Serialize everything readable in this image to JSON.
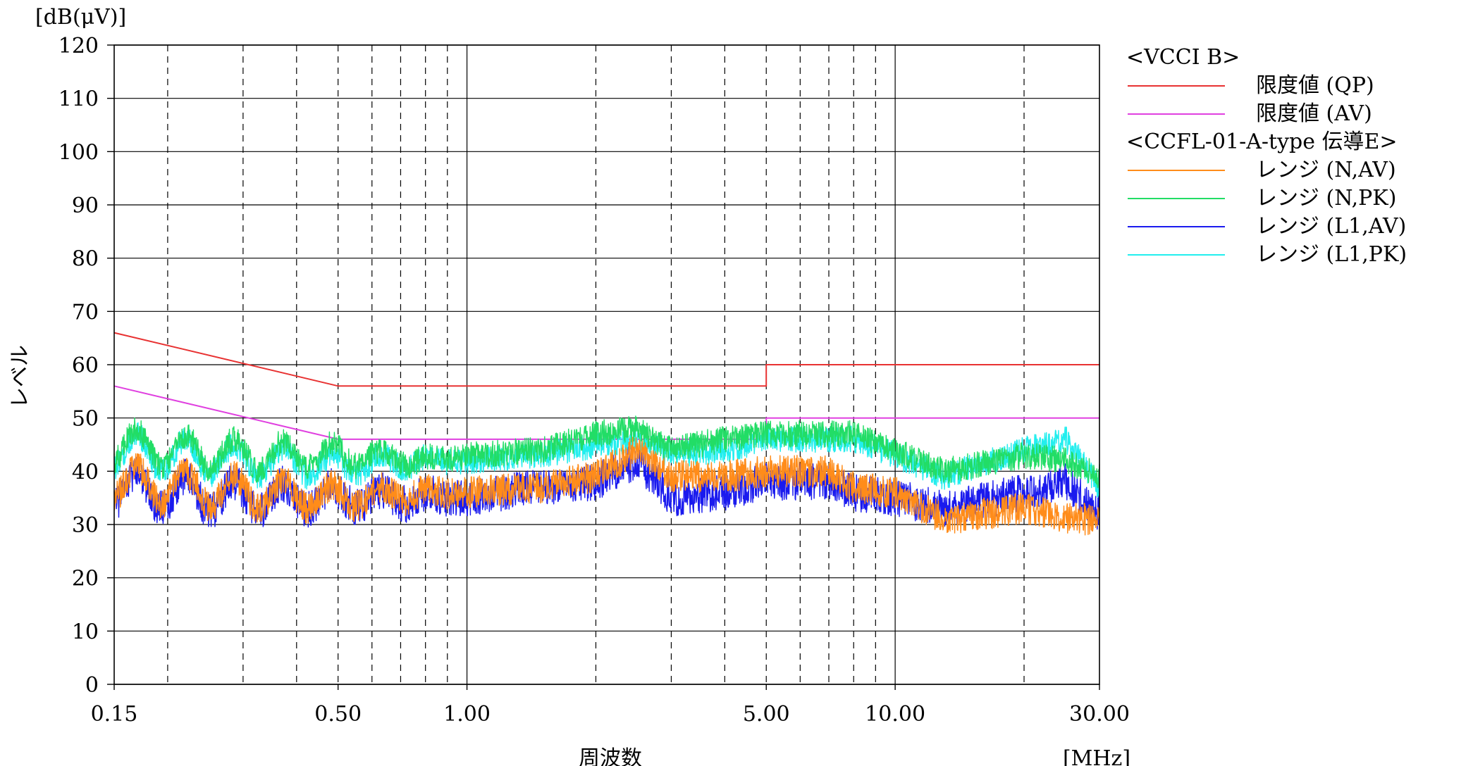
{
  "chart_data": {
    "type": "line",
    "title": "",
    "ylabel": "レベル",
    "yunit": "[dB(μV)]",
    "xlabel": "周波数",
    "xunit": "[MHz]",
    "xscale": "log",
    "xlim": [
      0.15,
      30
    ],
    "ylim": [
      0,
      120
    ],
    "yticks": [
      0,
      10,
      20,
      30,
      40,
      50,
      60,
      70,
      80,
      90,
      100,
      110,
      120
    ],
    "xtick_labels": [
      {
        "x": 0.15,
        "label": "0.15"
      },
      {
        "x": 0.5,
        "label": "0.50"
      },
      {
        "x": 1,
        "label": "1.00"
      },
      {
        "x": 5,
        "label": "5.00"
      },
      {
        "x": 10,
        "label": "10.00"
      },
      {
        "x": 30,
        "label": "30.00"
      }
    ],
    "minor_gridlines": [
      0.2,
      0.3,
      0.4,
      0.5,
      0.6,
      0.7,
      0.8,
      0.9,
      2,
      3,
      4,
      5,
      6,
      7,
      8,
      9,
      20
    ],
    "major_gridlines": [
      1,
      10
    ],
    "grid": true,
    "legend_position": "right",
    "legend": [
      {
        "type": "group",
        "label": "<VCCI B>"
      },
      {
        "type": "series",
        "label": "限度値 (QP)",
        "color": "#e83232"
      },
      {
        "type": "series",
        "label": "限度値 (AV)",
        "color": "#e040e0"
      },
      {
        "type": "group",
        "label": "<CCFL-01-A-type 伝導E>"
      },
      {
        "type": "series",
        "label": "レンジ (N,AV)",
        "color": "#ff8c1a"
      },
      {
        "type": "series",
        "label": "レンジ (N,PK)",
        "color": "#22dd66"
      },
      {
        "type": "series",
        "label": "レンジ (L1,AV)",
        "color": "#1a1aee"
      },
      {
        "type": "series",
        "label": "レンジ (L1,PK)",
        "color": "#22eeee"
      }
    ],
    "series": [
      {
        "name": "限度値 (QP)",
        "color": "#e83232",
        "x": [
          0.15,
          0.5,
          5,
          5,
          30
        ],
        "y": [
          66,
          56,
          56,
          60,
          60
        ]
      },
      {
        "name": "限度値 (AV)",
        "color": "#e040e0",
        "x": [
          0.15,
          0.5,
          5,
          5,
          30
        ],
        "y": [
          56,
          46,
          46,
          50,
          50
        ]
      },
      {
        "name": "レンジ (N,AV)",
        "color": "#ff8c1a",
        "x": [
          0.15,
          0.2,
          0.3,
          0.5,
          0.8,
          1.0,
          1.5,
          2.0,
          2.5,
          3.0,
          4.0,
          5.0,
          7.0,
          8.0,
          10.0,
          13.0,
          20.0,
          25.0,
          30.0
        ],
        "y": [
          38,
          37,
          36,
          35,
          36,
          36,
          37,
          39,
          44,
          39,
          39,
          40,
          40,
          37,
          36,
          31,
          33,
          31,
          31
        ],
        "noise": 3.0
      },
      {
        "name": "レンジ (N,PK)",
        "color": "#22dd66",
        "x": [
          0.15,
          0.2,
          0.3,
          0.5,
          0.8,
          1.0,
          1.5,
          2.0,
          2.5,
          3.0,
          4.0,
          5.0,
          7.0,
          8.0,
          10.0,
          13.0,
          20.0,
          25.0,
          30.0
        ],
        "y": [
          45,
          44,
          43,
          43,
          42,
          43,
          44,
          47,
          48,
          44,
          46,
          47,
          47,
          47,
          44,
          40,
          43,
          42,
          39
        ],
        "noise": 2.5
      },
      {
        "name": "レンジ (L1,AV)",
        "color": "#1a1aee",
        "x": [
          0.15,
          0.2,
          0.3,
          0.5,
          0.8,
          1.0,
          1.5,
          2.0,
          2.5,
          3.0,
          4.0,
          5.0,
          7.0,
          8.0,
          10.0,
          13.0,
          20.0,
          25.0,
          30.0
        ],
        "y": [
          37,
          36,
          35,
          35,
          35,
          35,
          37,
          38,
          42,
          35,
          36,
          38,
          38,
          36,
          35,
          33,
          36,
          38,
          32
        ],
        "noise": 3.5
      },
      {
        "name": "レンジ (L1,PK)",
        "color": "#22eeee",
        "x": [
          0.15,
          0.2,
          0.3,
          0.5,
          0.8,
          1.0,
          1.5,
          2.0,
          2.5,
          3.0,
          4.0,
          5.0,
          7.0,
          8.0,
          10.0,
          13.0,
          20.0,
          25.0,
          30.0
        ],
        "y": [
          44,
          43,
          42,
          41,
          42,
          42,
          43,
          45,
          46,
          43,
          44,
          46,
          46,
          46,
          43,
          39,
          44,
          46,
          37
        ],
        "noise": 2.5
      }
    ]
  }
}
